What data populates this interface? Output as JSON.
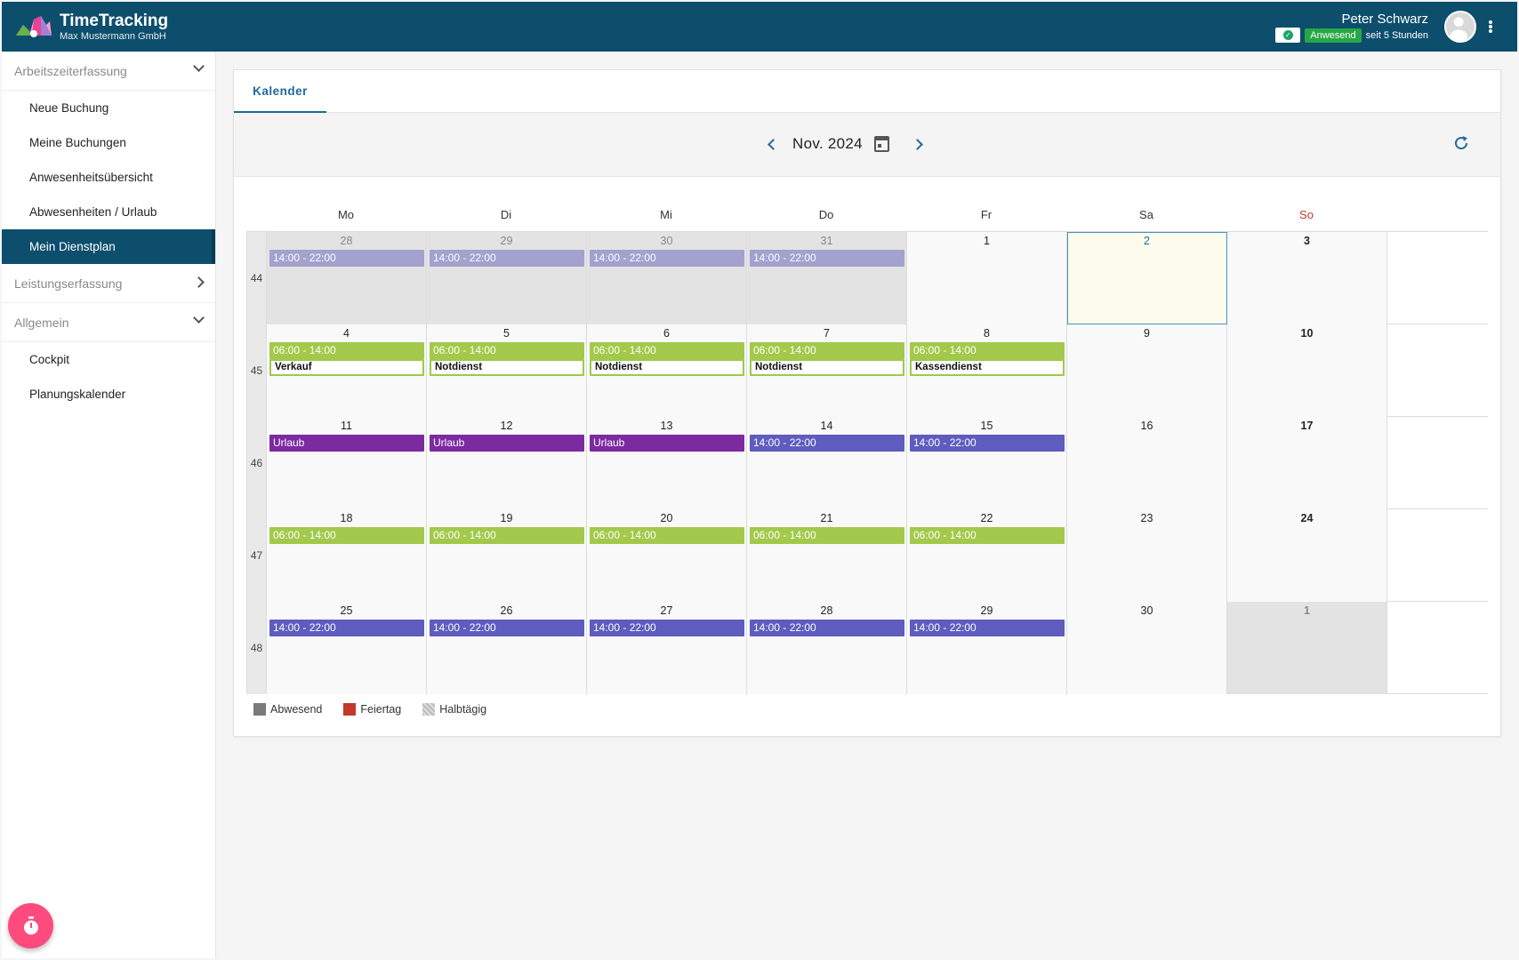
{
  "header": {
    "app_title": "TimeTracking",
    "company": "Max Mustermann GmbH",
    "user_name": "Peter Schwarz",
    "status_badge": "Anwesend",
    "status_since": "seit 5 Stunden"
  },
  "sidebar": {
    "sections": [
      {
        "label": "Arbeitszeiterfassung",
        "expanded": true,
        "items": [
          {
            "label": "Neue Buchung",
            "active": false
          },
          {
            "label": "Meine Buchungen",
            "active": false
          },
          {
            "label": "Anwesenheitsübersicht",
            "active": false
          },
          {
            "label": "Abwesenheiten / Urlaub",
            "active": false
          },
          {
            "label": "Mein Dienstplan",
            "active": true
          }
        ]
      },
      {
        "label": "Leistungserfassung",
        "expanded": false,
        "items": []
      },
      {
        "label": "Allgemein",
        "expanded": true,
        "items": [
          {
            "label": "Cockpit",
            "active": false
          },
          {
            "label": "Planungskalender",
            "active": false
          }
        ]
      }
    ]
  },
  "tabs": [
    {
      "label": "Kalender",
      "active": true
    }
  ],
  "toolbar": {
    "month_label": "Nov. 2024"
  },
  "calendar": {
    "weekdays": [
      "Mo",
      "Di",
      "Mi",
      "Do",
      "Fr",
      "Sa",
      "So"
    ],
    "colors": {
      "past_shift": "#a3a1ce",
      "early_shift": "#a2c94b",
      "late_shift": "#5e5cbe",
      "vacation": "#7b2aa0"
    },
    "weeks": [
      {
        "week": "44",
        "days": [
          {
            "day": "28",
            "out": true,
            "events": [
              {
                "text": "14:00  - 22:00",
                "type": "past_shift"
              }
            ]
          },
          {
            "day": "29",
            "out": true,
            "events": [
              {
                "text": "14:00  - 22:00",
                "type": "past_shift"
              }
            ]
          },
          {
            "day": "30",
            "out": true,
            "events": [
              {
                "text": "14:00  - 22:00",
                "type": "past_shift"
              }
            ]
          },
          {
            "day": "31",
            "out": true,
            "events": [
              {
                "text": "14:00  - 22:00",
                "type": "past_shift"
              }
            ]
          },
          {
            "day": "1",
            "events": []
          },
          {
            "day": "2",
            "today": true,
            "events": []
          },
          {
            "day": "3",
            "events": []
          }
        ]
      },
      {
        "week": "45",
        "days": [
          {
            "day": "4",
            "events": [
              {
                "text": "06:00  - 14:00",
                "type": "early_shift"
              }
            ],
            "note": "Verkauf"
          },
          {
            "day": "5",
            "events": [
              {
                "text": "06:00  - 14:00",
                "type": "early_shift"
              }
            ],
            "note": "Notdienst"
          },
          {
            "day": "6",
            "events": [
              {
                "text": "06:00  - 14:00",
                "type": "early_shift"
              }
            ],
            "note": "Notdienst"
          },
          {
            "day": "7",
            "events": [
              {
                "text": "06:00  - 14:00",
                "type": "early_shift"
              }
            ],
            "note": "Notdienst"
          },
          {
            "day": "8",
            "events": [
              {
                "text": "06:00  - 14:00",
                "type": "early_shift"
              }
            ],
            "note": "Kassendienst"
          },
          {
            "day": "9",
            "events": []
          },
          {
            "day": "10",
            "events": []
          }
        ]
      },
      {
        "week": "46",
        "days": [
          {
            "day": "11",
            "events": [
              {
                "text": "Urlaub",
                "type": "vacation"
              }
            ]
          },
          {
            "day": "12",
            "events": [
              {
                "text": "Urlaub",
                "type": "vacation"
              }
            ]
          },
          {
            "day": "13",
            "events": [
              {
                "text": "Urlaub",
                "type": "vacation"
              }
            ]
          },
          {
            "day": "14",
            "events": [
              {
                "text": "14:00  - 22:00",
                "type": "late_shift"
              }
            ]
          },
          {
            "day": "15",
            "events": [
              {
                "text": "14:00  - 22:00",
                "type": "late_shift"
              }
            ]
          },
          {
            "day": "16",
            "events": []
          },
          {
            "day": "17",
            "events": []
          }
        ]
      },
      {
        "week": "47",
        "days": [
          {
            "day": "18",
            "events": [
              {
                "text": "06:00  - 14:00",
                "type": "early_shift"
              }
            ]
          },
          {
            "day": "19",
            "events": [
              {
                "text": "06:00  - 14:00",
                "type": "early_shift"
              }
            ]
          },
          {
            "day": "20",
            "events": [
              {
                "text": "06:00  - 14:00",
                "type": "early_shift"
              }
            ]
          },
          {
            "day": "21",
            "events": [
              {
                "text": "06:00  - 14:00",
                "type": "early_shift"
              }
            ]
          },
          {
            "day": "22",
            "events": [
              {
                "text": "06:00  - 14:00",
                "type": "early_shift"
              }
            ]
          },
          {
            "day": "23",
            "events": []
          },
          {
            "day": "24",
            "events": []
          }
        ]
      },
      {
        "week": "48",
        "days": [
          {
            "day": "25",
            "events": [
              {
                "text": "14:00  - 22:00",
                "type": "late_shift"
              }
            ]
          },
          {
            "day": "26",
            "events": [
              {
                "text": "14:00  - 22:00",
                "type": "late_shift"
              }
            ]
          },
          {
            "day": "27",
            "events": [
              {
                "text": "14:00  - 22:00",
                "type": "late_shift"
              }
            ]
          },
          {
            "day": "28",
            "events": [
              {
                "text": "14:00  - 22:00",
                "type": "late_shift"
              }
            ]
          },
          {
            "day": "29",
            "events": [
              {
                "text": "14:00  - 22:00",
                "type": "late_shift"
              }
            ]
          },
          {
            "day": "30",
            "events": []
          },
          {
            "day": "1",
            "out": true,
            "events": []
          }
        ]
      }
    ]
  },
  "legend": [
    {
      "label": "Abwesend",
      "color": "#7a7a7a"
    },
    {
      "label": "Feiertag",
      "color": "#c0392b"
    },
    {
      "label": "Halbtägig",
      "pattern": "hatched"
    }
  ]
}
